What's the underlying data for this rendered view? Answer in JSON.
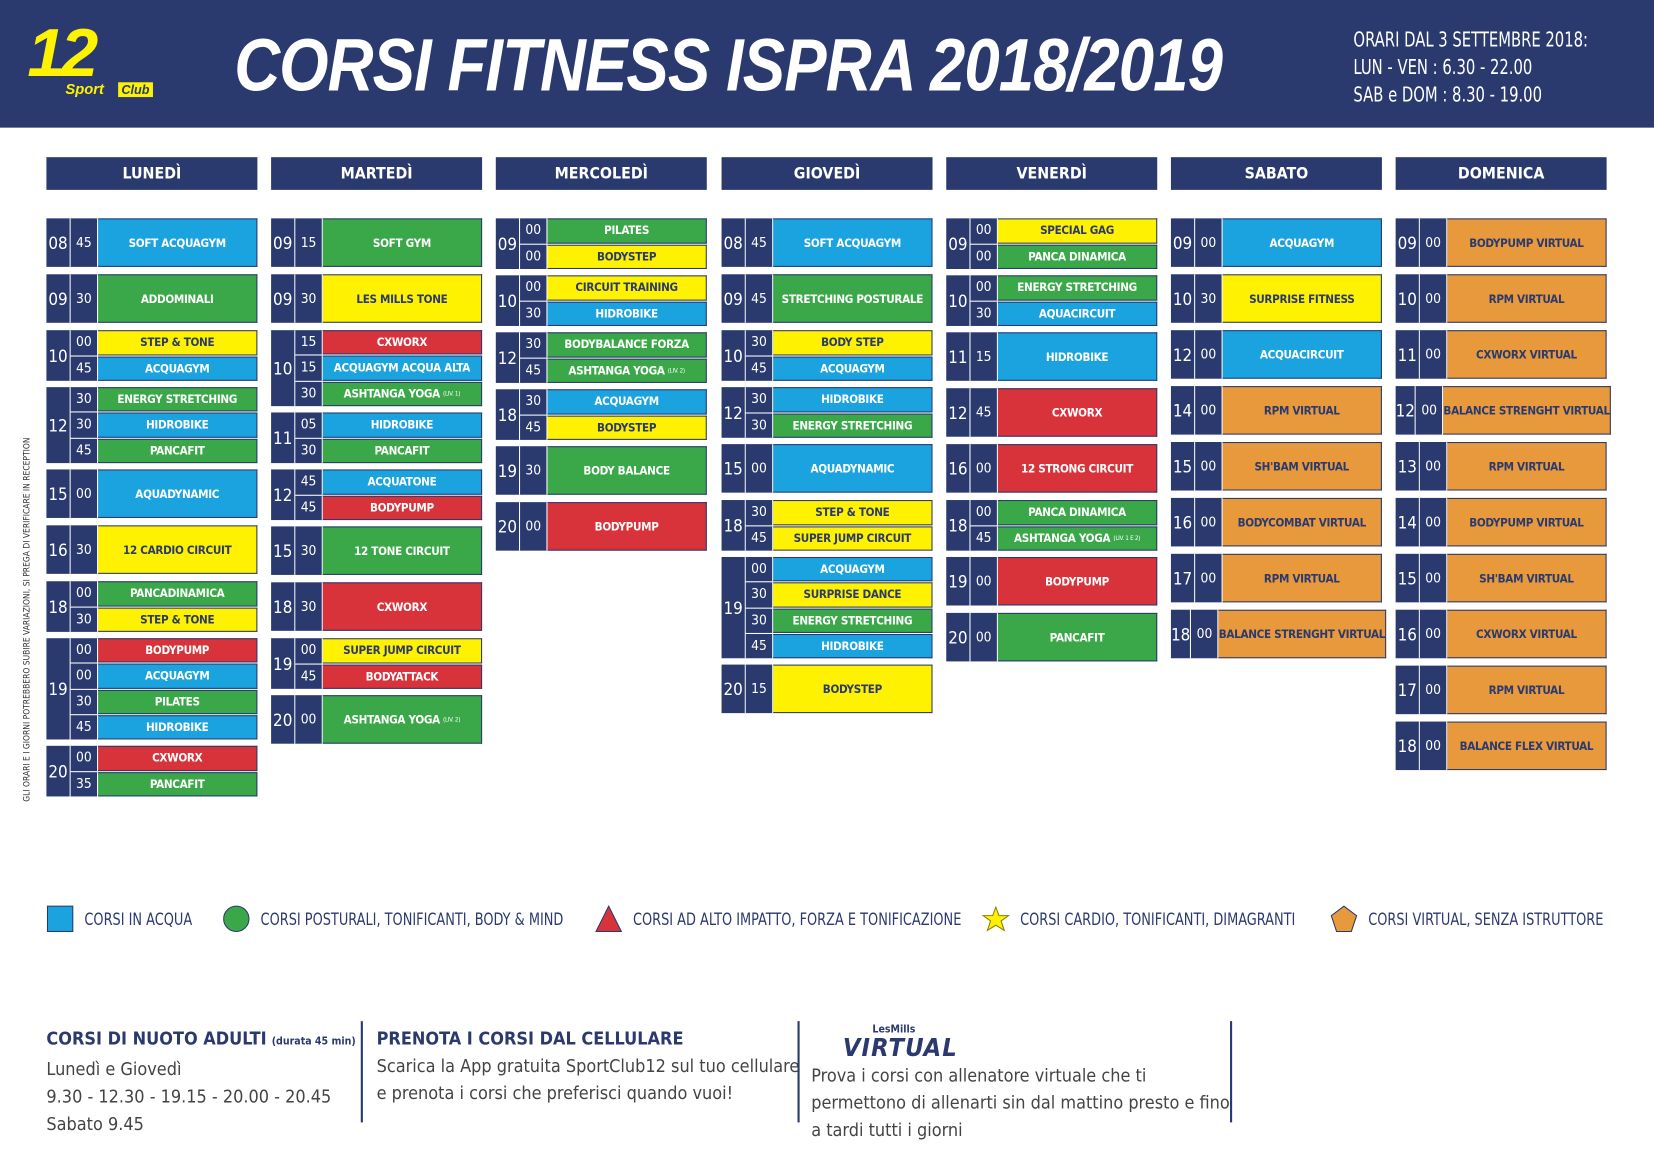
{
  "header": {
    "logo": {
      "number": "12",
      "sport": "Sport",
      "club": "Club"
    },
    "title": "CORSI FITNESS ISPRA 2018/2019",
    "hours": [
      "ORARI DAL 3 SETTEMBRE 2018:",
      "LUN - VEN : 6.30 - 22.00",
      "SAB e DOM : 8.30 - 19.00"
    ]
  },
  "side_note": "GLI ORARI E I GIORNI POTREBBERO SUBIRE VARIAZIONI, SI PREGA DI VERIFICARE IN RECEPTION",
  "days": [
    {
      "name": "LUNEDÌ",
      "groups": [
        {
          "hour": "08",
          "slots": [
            {
              "min": "45",
              "course": "SOFT ACQUAGYM",
              "color": "#1ba3df"
            }
          ]
        },
        {
          "hour": "09",
          "slots": [
            {
              "min": "30",
              "course": "ADDOMINALI",
              "color": "#3aa848"
            }
          ]
        },
        {
          "hour": "10",
          "slots": [
            {
              "min": "00",
              "course": "STEP & TONE",
              "color": "#fff200"
            },
            {
              "min": "45",
              "course": "ACQUAGYM",
              "color": "#1ba3df"
            }
          ]
        },
        {
          "hour": "12",
          "slots": [
            {
              "min": "30",
              "course": "ENERGY STRETCHING",
              "color": "#3aa848"
            },
            {
              "min": "30",
              "course": "HIDROBIKE",
              "color": "#1ba3df"
            },
            {
              "min": "45",
              "course": "PANCAFIT",
              "color": "#3aa848"
            }
          ]
        },
        {
          "hour": "15",
          "slots": [
            {
              "min": "00",
              "course": "AQUADYNAMIC",
              "color": "#1ba3df"
            }
          ]
        },
        {
          "hour": "16",
          "slots": [
            {
              "min": "30",
              "course": "12 CARDIO CIRCUIT",
              "color": "#fff200"
            }
          ]
        },
        {
          "hour": "18",
          "slots": [
            {
              "min": "00",
              "course": "PANCADINAMICA",
              "color": "#3aa848"
            },
            {
              "min": "30",
              "course": "STEP & TONE",
              "color": "#fff200"
            }
          ]
        },
        {
          "hour": "19",
          "slots": [
            {
              "min": "00",
              "course": "BODYPUMP",
              "color": "#d8333b"
            },
            {
              "min": "00",
              "course": "ACQUAGYM",
              "color": "#1ba3df"
            },
            {
              "min": "30",
              "course": "PILATES",
              "color": "#3aa848"
            },
            {
              "min": "45",
              "course": "HIDROBIKE",
              "color": "#1ba3df"
            }
          ]
        },
        {
          "hour": "20",
          "slots": [
            {
              "min": "00",
              "course": "CXWORX",
              "color": "#d8333b"
            },
            {
              "min": "35",
              "course": "PANCAFIT",
              "color": "#3aa848"
            }
          ]
        }
      ]
    },
    {
      "name": "MARTEDÌ",
      "groups": [
        {
          "hour": "09",
          "slots": [
            {
              "min": "15",
              "course": "SOFT GYM",
              "color": "#3aa848"
            }
          ]
        },
        {
          "hour": "09",
          "slots": [
            {
              "min": "30",
              "course": "LES MILLS TONE",
              "color": "#fff200"
            }
          ]
        },
        {
          "hour": "10",
          "slots": [
            {
              "min": "15",
              "course": "CXWORX",
              "color": "#d8333b"
            },
            {
              "min": "15",
              "course": "ACQUAGYM ACQUA ALTA",
              "color": "#1ba3df"
            },
            {
              "min": "30",
              "course": "ASHTANGA YOGA",
              "note": "(LIV. 1)",
              "color": "#3aa848"
            }
          ]
        },
        {
          "hour": "11",
          "slots": [
            {
              "min": "05",
              "course": "HIDROBIKE",
              "color": "#1ba3df"
            },
            {
              "min": "30",
              "course": "PANCAFIT",
              "color": "#3aa848"
            }
          ]
        },
        {
          "hour": "12",
          "slots": [
            {
              "min": "45",
              "course": "ACQUATONE",
              "color": "#1ba3df"
            },
            {
              "min": "45",
              "course": "BODYPUMP",
              "color": "#d8333b"
            }
          ]
        },
        {
          "hour": "15",
          "slots": [
            {
              "min": "30",
              "course": "12 TONE CIRCUIT",
              "color": "#3aa848"
            }
          ]
        },
        {
          "hour": "18",
          "slots": [
            {
              "min": "30",
              "course": "CXWORX",
              "color": "#d8333b"
            }
          ]
        },
        {
          "hour": "19",
          "slots": [
            {
              "min": "00",
              "course": "SUPER JUMP CIRCUIT",
              "color": "#fff200"
            },
            {
              "min": "45",
              "course": "BODYATTACK",
              "color": "#d8333b"
            }
          ]
        },
        {
          "hour": "20",
          "slots": [
            {
              "min": "00",
              "course": "ASHTANGA YOGA",
              "note": "(LIV. 2)",
              "color": "#3aa848"
            }
          ]
        }
      ]
    },
    {
      "name": "MERCOLEDÌ",
      "groups": [
        {
          "hour": "09",
          "slots": [
            {
              "min": "00",
              "course": "PILATES",
              "color": "#3aa848"
            },
            {
              "min": "00",
              "course": "BODYSTEP",
              "color": "#fff200"
            }
          ]
        },
        {
          "hour": "10",
          "slots": [
            {
              "min": "00",
              "course": "CIRCUIT TRAINING",
              "color": "#fff200"
            },
            {
              "min": "30",
              "course": "HIDROBIKE",
              "color": "#1ba3df"
            }
          ]
        },
        {
          "hour": "12",
          "slots": [
            {
              "min": "30",
              "course": "BODYBALANCE FORZA",
              "color": "#3aa848"
            },
            {
              "min": "45",
              "course": "ASHTANGA YOGA",
              "note": "(LIV. 2)",
              "color": "#3aa848"
            }
          ]
        },
        {
          "hour": "18",
          "slots": [
            {
              "min": "30",
              "course": "ACQUAGYM",
              "color": "#1ba3df"
            },
            {
              "min": "45",
              "course": "BODYSTEP",
              "color": "#fff200"
            }
          ]
        },
        {
          "hour": "19",
          "slots": [
            {
              "min": "30",
              "course": "BODY BALANCE",
              "color": "#3aa848"
            }
          ]
        },
        {
          "hour": "20",
          "slots": [
            {
              "min": "00",
              "course": "BODYPUMP",
              "color": "#d8333b"
            }
          ]
        }
      ]
    },
    {
      "name": "GIOVEDÌ",
      "groups": [
        {
          "hour": "08",
          "slots": [
            {
              "min": "45",
              "course": "SOFT ACQUAGYM",
              "color": "#1ba3df"
            }
          ]
        },
        {
          "hour": "09",
          "slots": [
            {
              "min": "45",
              "course": "STRETCHING POSTURALE",
              "color": "#3aa848"
            }
          ]
        },
        {
          "hour": "10",
          "slots": [
            {
              "min": "30",
              "course": "BODY STEP",
              "color": "#fff200"
            },
            {
              "min": "45",
              "course": "ACQUAGYM",
              "color": "#1ba3df"
            }
          ]
        },
        {
          "hour": "12",
          "slots": [
            {
              "min": "30",
              "course": "HIDROBIKE",
              "color": "#1ba3df"
            },
            {
              "min": "30",
              "course": "ENERGY STRETCHING",
              "color": "#3aa848"
            }
          ]
        },
        {
          "hour": "15",
          "slots": [
            {
              "min": "00",
              "course": "AQUADYNAMIC",
              "color": "#1ba3df"
            }
          ]
        },
        {
          "hour": "18",
          "slots": [
            {
              "min": "30",
              "course": "STEP & TONE",
              "color": "#fff200"
            },
            {
              "min": "45",
              "course": "SUPER JUMP CIRCUIT",
              "color": "#fff200"
            }
          ]
        },
        {
          "hour": "19",
          "slots": [
            {
              "min": "00",
              "course": "ACQUAGYM",
              "color": "#1ba3df"
            },
            {
              "min": "30",
              "course": "SURPRISE DANCE",
              "color": "#fff200"
            },
            {
              "min": "30",
              "course": "ENERGY STRETCHING",
              "color": "#3aa848"
            },
            {
              "min": "45",
              "course": "HIDROBIKE",
              "color": "#1ba3df"
            }
          ]
        },
        {
          "hour": "20",
          "slots": [
            {
              "min": "15",
              "course": "BODYSTEP",
              "color": "#fff200"
            }
          ]
        }
      ]
    },
    {
      "name": "VENERDÌ",
      "groups": [
        {
          "hour": "09",
          "slots": [
            {
              "min": "00",
              "course": "SPECIAL GAG",
              "color": "#fff200"
            },
            {
              "min": "00",
              "course": "PANCA DINAMICA",
              "color": "#3aa848"
            }
          ]
        },
        {
          "hour": "10",
          "slots": [
            {
              "min": "00",
              "course": "ENERGY STRETCHING",
              "color": "#3aa848"
            },
            {
              "min": "30",
              "course": "AQUACIRCUIT",
              "color": "#1ba3df"
            }
          ]
        },
        {
          "hour": "11",
          "slots": [
            {
              "min": "15",
              "course": "HIDROBIKE",
              "color": "#1ba3df"
            }
          ]
        },
        {
          "hour": "12",
          "slots": [
            {
              "min": "45",
              "course": "CXWORX",
              "color": "#d8333b"
            }
          ]
        },
        {
          "hour": "16",
          "slots": [
            {
              "min": "00",
              "course": "12 STRONG CIRCUIT",
              "color": "#d8333b"
            }
          ]
        },
        {
          "hour": "18",
          "slots": [
            {
              "min": "00",
              "course": "PANCA DINAMICA",
              "color": "#3aa848"
            },
            {
              "min": "45",
              "course": "ASHTANGA YOGA",
              "note": "(LIV. 1 E 2)",
              "color": "#3aa848"
            }
          ]
        },
        {
          "hour": "19",
          "slots": [
            {
              "min": "00",
              "course": "BODYPUMP",
              "color": "#d8333b"
            }
          ]
        },
        {
          "hour": "20",
          "slots": [
            {
              "min": "00",
              "course": "PANCAFIT",
              "color": "#3aa848"
            }
          ]
        }
      ]
    },
    {
      "name": "SABATO",
      "groups": [
        {
          "hour": "09",
          "slots": [
            {
              "min": "00",
              "course": "ACQUAGYM",
              "color": "#1ba3df"
            }
          ]
        },
        {
          "hour": "10",
          "slots": [
            {
              "min": "30",
              "course": "SURPRISE FITNESS",
              "color": "#fff200"
            }
          ]
        },
        {
          "hour": "12",
          "slots": [
            {
              "min": "00",
              "course": "ACQUACIRCUIT",
              "color": "#1ba3df"
            }
          ]
        },
        {
          "hour": "14",
          "slots": [
            {
              "min": "00",
              "course": "RPM VIRTUAL",
              "color": "#e8993b"
            }
          ]
        },
        {
          "hour": "15",
          "slots": [
            {
              "min": "00",
              "course": "SH'BAM VIRTUAL",
              "color": "#e8993b"
            }
          ]
        },
        {
          "hour": "16",
          "slots": [
            {
              "min": "00",
              "course": "BODYCOMBAT VIRTUAL",
              "color": "#e8993b"
            }
          ]
        },
        {
          "hour": "17",
          "slots": [
            {
              "min": "00",
              "course": "RPM VIRTUAL",
              "color": "#e8993b"
            }
          ]
        },
        {
          "hour": "18",
          "slots": [
            {
              "min": "00",
              "course": "BALANCE STRENGHT VIRTUAL",
              "color": "#e8993b"
            }
          ]
        }
      ]
    },
    {
      "name": "DOMENICA",
      "groups": [
        {
          "hour": "09",
          "slots": [
            {
              "min": "00",
              "course": "BODYPUMP VIRTUAL",
              "color": "#e8993b"
            }
          ]
        },
        {
          "hour": "10",
          "slots": [
            {
              "min": "00",
              "course": "RPM VIRTUAL",
              "color": "#e8993b"
            }
          ]
        },
        {
          "hour": "11",
          "slots": [
            {
              "min": "00",
              "course": "CXWORX VIRTUAL",
              "color": "#e8993b"
            }
          ]
        },
        {
          "hour": "12",
          "slots": [
            {
              "min": "00",
              "course": "BALANCE STRENGHT VIRTUAL",
              "color": "#e8993b"
            }
          ]
        },
        {
          "hour": "13",
          "slots": [
            {
              "min": "00",
              "course": "RPM VIRTUAL",
              "color": "#e8993b"
            }
          ]
        },
        {
          "hour": "14",
          "slots": [
            {
              "min": "00",
              "course": "BODYPUMP VIRTUAL",
              "color": "#e8993b"
            }
          ]
        },
        {
          "hour": "15",
          "slots": [
            {
              "min": "00",
              "course": "SH'BAM VIRTUAL",
              "color": "#e8993b"
            }
          ]
        },
        {
          "hour": "16",
          "slots": [
            {
              "min": "00",
              "course": "CXWORX VIRTUAL",
              "color": "#e8993b"
            }
          ]
        },
        {
          "hour": "17",
          "slots": [
            {
              "min": "00",
              "course": "RPM VIRTUAL",
              "color": "#e8993b"
            }
          ]
        },
        {
          "hour": "18",
          "slots": [
            {
              "min": "00",
              "course": "BALANCE FLEX VIRTUAL",
              "color": "#e8993b"
            }
          ]
        }
      ]
    }
  ],
  "legend": [
    {
      "label": "CORSI IN ACQUA",
      "shape": "square",
      "color": "#1ba3df"
    },
    {
      "label": "CORSI POSTURALI, TONIFICANTI, BODY & MIND",
      "shape": "circle",
      "color": "#3aa848"
    },
    {
      "label": "CORSI AD ALTO IMPATTO, FORZA E TONIFICAZIONE",
      "shape": "triangle",
      "color": "#d8333b"
    },
    {
      "label": "CORSI CARDIO, TONIFICANTI, DIMAGRANTI",
      "shape": "star",
      "color": "#fff200"
    },
    {
      "label": "CORSI VIRTUAL, SENZA ISTRUTTORE",
      "shape": "pentagon",
      "color": "#e8993b"
    }
  ],
  "footer": [
    {
      "title": "CORSI DI NUOTO ADULTI",
      "note": "(durata 45 min)",
      "lines": [
        "Lunedì e Giovedì",
        "9.30  - 12.30 - 19.15 - 20.00 - 20.45",
        "Sabato 9.45"
      ]
    },
    {
      "title": "PRENOTA I CORSI DAL CELLULARE",
      "lines": [
        "Scarica la App gratuita SportClub12 sul tuo cellulare",
        "e prenota i corsi che preferisci quando vuoi!"
      ]
    },
    {
      "brand": "LesMills",
      "title": "VIRTUAL",
      "lines": [
        "Prova i corsi con allenatore virtuale che ti",
        "permettono di allenarti sin dal mattino presto e fino",
        "a tardi tutti i giorni"
      ]
    }
  ]
}
